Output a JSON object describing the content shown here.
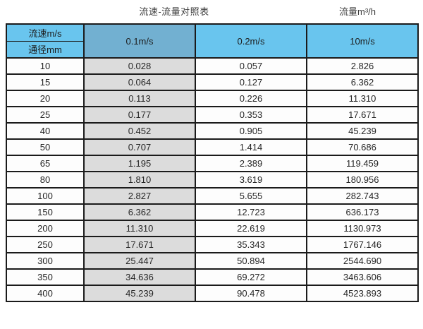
{
  "page": {
    "title_left": "流速-流量对照表",
    "title_right": "流量m³/h"
  },
  "table": {
    "corner_top": "流速m/s",
    "corner_bottom": "通径mm",
    "velocity_headers": [
      "0.1m/s",
      "0.2m/s",
      "10m/s"
    ],
    "rows": [
      [
        "10",
        "0.028",
        "0.057",
        "2.826"
      ],
      [
        "15",
        "0.064",
        "0.127",
        "6.362"
      ],
      [
        "20",
        "0.113",
        "0.226",
        "11.310"
      ],
      [
        "25",
        "0.177",
        "0.353",
        "17.671"
      ],
      [
        "40",
        "0.452",
        "0.905",
        "45.239"
      ],
      [
        "50",
        "0.707",
        "1.414",
        "70.686"
      ],
      [
        "65",
        "1.195",
        "2.389",
        "119.459"
      ],
      [
        "80",
        "1.810",
        "3.619",
        "180.956"
      ],
      [
        "100",
        "2.827",
        "5.655",
        "282.743"
      ],
      [
        "150",
        "6.362",
        "12.723",
        "636.173"
      ],
      [
        "200",
        "11.310",
        "22.619",
        "1130.973"
      ],
      [
        "250",
        "17.671",
        "35.343",
        "1767.146"
      ],
      [
        "300",
        "25.447",
        "50.894",
        "2544.690"
      ],
      [
        "350",
        "34.636",
        "69.272",
        "3463.606"
      ],
      [
        "400",
        "45.239",
        "90.478",
        "4523.893"
      ]
    ]
  },
  "colors": {
    "header_blue": "#69c5ee",
    "header_muted_blue": "#72b0d1",
    "grey_column": "#dcdcdc",
    "border": "#1b1b1b",
    "text": "#262626"
  },
  "chart_data": {
    "type": "table",
    "title": "流速-流量对照表",
    "unit_label": "流量m³/h",
    "row_axis_label": "通径mm",
    "column_axis_label": "流速m/s",
    "categories": [
      10,
      15,
      20,
      25,
      40,
      50,
      65,
      80,
      100,
      150,
      200,
      250,
      300,
      350,
      400
    ],
    "series": [
      {
        "name": "0.1m/s",
        "values": [
          0.028,
          0.064,
          0.113,
          0.177,
          0.452,
          0.707,
          1.195,
          1.81,
          2.827,
          6.362,
          11.31,
          17.671,
          25.447,
          34.636,
          45.239
        ]
      },
      {
        "name": "0.2m/s",
        "values": [
          0.057,
          0.127,
          0.226,
          0.353,
          0.905,
          1.414,
          2.389,
          3.619,
          5.655,
          12.723,
          22.619,
          35.343,
          50.894,
          69.272,
          90.478
        ]
      },
      {
        "name": "10m/s",
        "values": [
          2.826,
          6.362,
          11.31,
          17.671,
          45.239,
          70.686,
          119.459,
          180.956,
          282.743,
          636.173,
          1130.973,
          1767.146,
          2544.69,
          3463.606,
          4523.893
        ]
      }
    ]
  }
}
